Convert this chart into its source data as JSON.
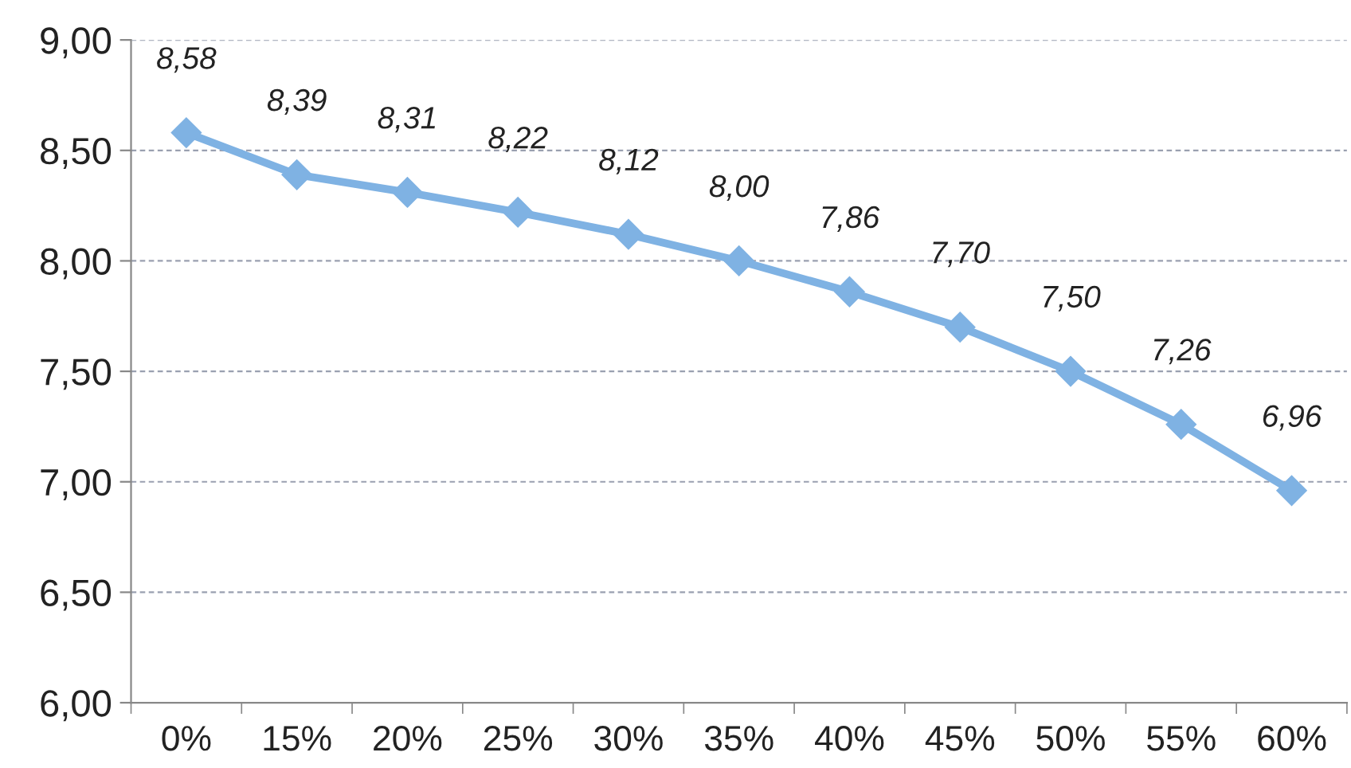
{
  "chart_data": {
    "type": "line",
    "categories": [
      "0%",
      "15%",
      "20%",
      "25%",
      "30%",
      "35%",
      "40%",
      "45%",
      "50%",
      "55%",
      "60%"
    ],
    "series": [
      {
        "color": "#7fb2e3",
        "values": [
          8.58,
          8.39,
          8.31,
          8.22,
          8.12,
          8.0,
          7.86,
          7.7,
          7.5,
          7.26,
          6.96
        ],
        "value_labels": [
          "8,58",
          "8,39",
          "8,31",
          "8,22",
          "8,12",
          "8,00",
          "7,86",
          "7,70",
          "7,50",
          "7,26",
          "6,96"
        ]
      }
    ],
    "ylim": [
      6,
      9
    ],
    "yticks": [
      {
        "value": 6,
        "label": "6,00"
      },
      {
        "value": 6.5,
        "label": "6,50"
      },
      {
        "value": 7,
        "label": "7,00"
      },
      {
        "value": 7.5,
        "label": "7,50"
      },
      {
        "value": 8,
        "label": "8,00"
      },
      {
        "value": 8.5,
        "label": "8,50"
      },
      {
        "value": 9,
        "label": "9,00"
      }
    ],
    "grid": "y",
    "marker": "diamond",
    "line_style": "solid"
  }
}
